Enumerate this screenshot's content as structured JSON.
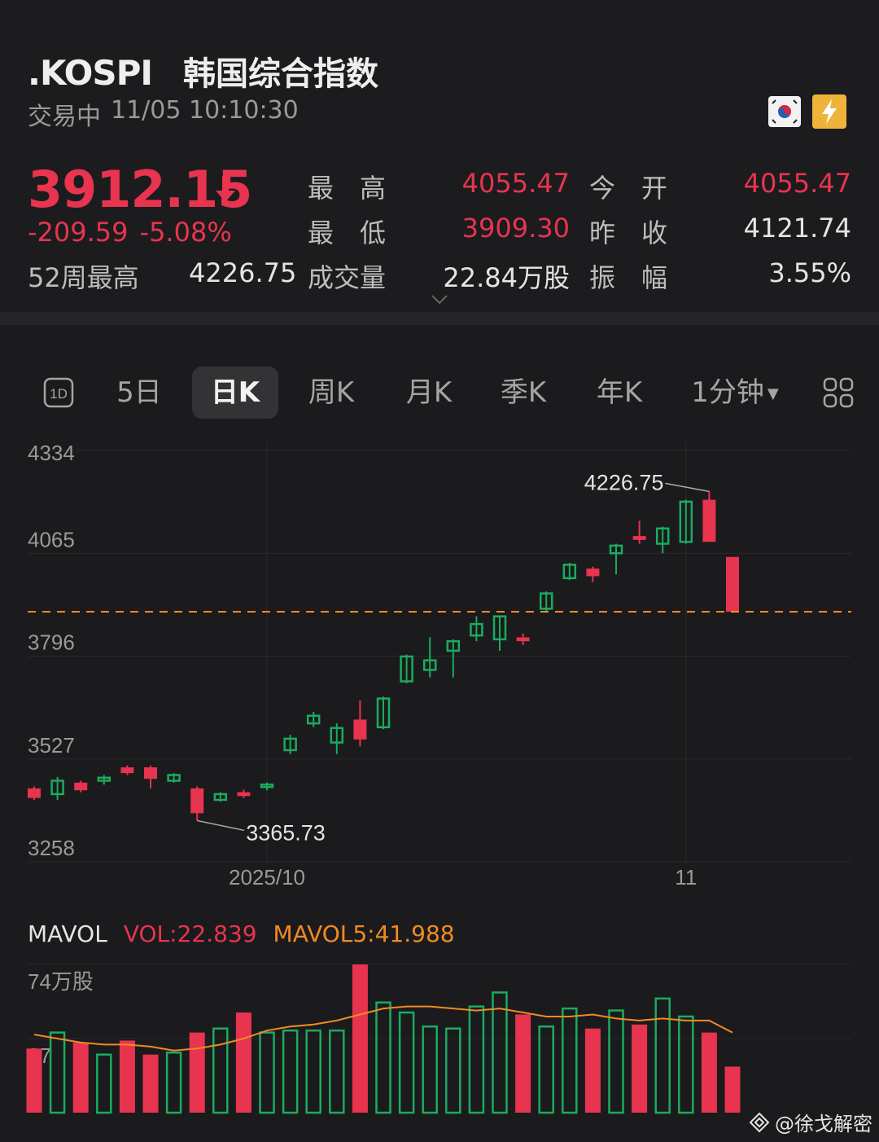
{
  "header": {
    "ticker": ".KOSPI",
    "name": "韩国综合指数",
    "status": "交易中",
    "datetime": "11/05 10:10:30",
    "price": "3912.15",
    "change": "-209.59",
    "change_pct": "-5.08%",
    "week52_label": "52周最高",
    "week52_value": "4226.75",
    "stats": {
      "high_label": "最高",
      "high": "4055.47",
      "low_label": "最低",
      "low": "3909.30",
      "volume_label": "成交量",
      "volume": "22.84万股",
      "open_label": "今开",
      "open": "4055.47",
      "prev_close_label": "昨收",
      "prev_close": "4121.74",
      "amplitude_label": "振幅",
      "amplitude": "3.55%"
    }
  },
  "tabs": [
    {
      "label": "1D",
      "icon": "1d-icon"
    },
    {
      "label": "5日"
    },
    {
      "label": "日K",
      "active": true
    },
    {
      "label": "周K"
    },
    {
      "label": "月K"
    },
    {
      "label": "季K"
    },
    {
      "label": "年K"
    },
    {
      "label": "1分钟"
    },
    {
      "label": "",
      "icon": "grid-icon"
    }
  ],
  "colors": {
    "up": "#1bab5f",
    "down": "#e8344f",
    "ma": "#f08a24",
    "bg": "#1b1b1d"
  },
  "chart_data": {
    "type": "candlestick",
    "y_ticks": [
      "4334",
      "4065",
      "3796",
      "3527",
      "3258"
    ],
    "x_tick_labels": [
      "2025/10",
      "11"
    ],
    "current_price_line": 3912.15,
    "annotations": [
      {
        "label": "4226.75"
      },
      {
        "label": "3365.73"
      }
    ],
    "candles": [
      {
        "o": 3450,
        "h": 3455,
        "l": 3420,
        "c": 3425
      },
      {
        "o": 3435,
        "h": 3480,
        "l": 3420,
        "c": 3470
      },
      {
        "o": 3465,
        "h": 3470,
        "l": 3440,
        "c": 3445
      },
      {
        "o": 3470,
        "h": 3485,
        "l": 3460,
        "c": 3478
      },
      {
        "o": 3505,
        "h": 3510,
        "l": 3485,
        "c": 3490
      },
      {
        "o": 3505,
        "h": 3510,
        "l": 3450,
        "c": 3475
      },
      {
        "o": 3470,
        "h": 3490,
        "l": 3465,
        "c": 3485
      },
      {
        "o": 3450,
        "h": 3455,
        "l": 3365.73,
        "c": 3385
      },
      {
        "o": 3420,
        "h": 3440,
        "l": 3415,
        "c": 3435
      },
      {
        "o": 3440,
        "h": 3447,
        "l": 3425,
        "c": 3430
      },
      {
        "o": 3455,
        "h": 3465,
        "l": 3445,
        "c": 3460
      },
      {
        "o": 3550,
        "h": 3590,
        "l": 3540,
        "c": 3580
      },
      {
        "o": 3620,
        "h": 3650,
        "l": 3610,
        "c": 3640
      },
      {
        "o": 3570,
        "h": 3620,
        "l": 3540,
        "c": 3608
      },
      {
        "o": 3630,
        "h": 3680,
        "l": 3560,
        "c": 3578
      },
      {
        "o": 3610,
        "h": 3690,
        "l": 3605,
        "c": 3685
      },
      {
        "o": 3730,
        "h": 3800,
        "l": 3725,
        "c": 3795
      },
      {
        "o": 3760,
        "h": 3845,
        "l": 3740,
        "c": 3785
      },
      {
        "o": 3810,
        "h": 3840,
        "l": 3740,
        "c": 3835
      },
      {
        "o": 3850,
        "h": 3900,
        "l": 3835,
        "c": 3880
      },
      {
        "o": 3840,
        "h": 3900,
        "l": 3810,
        "c": 3900
      },
      {
        "o": 3845,
        "h": 3855,
        "l": 3825,
        "c": 3835
      },
      {
        "o": 3920,
        "h": 3965,
        "l": 3910,
        "c": 3960
      },
      {
        "o": 4000,
        "h": 4040,
        "l": 3995,
        "c": 4035
      },
      {
        "o": 4025,
        "h": 4030,
        "l": 3990,
        "c": 4005
      },
      {
        "o": 4065,
        "h": 4090,
        "l": 4010,
        "c": 4085
      },
      {
        "o": 4110,
        "h": 4150,
        "l": 4090,
        "c": 4100
      },
      {
        "o": 4090,
        "h": 4135,
        "l": 4065,
        "c": 4130
      },
      {
        "o": 4095,
        "h": 4205,
        "l": 4090,
        "c": 4200
      },
      {
        "o": 4205,
        "h": 4226.75,
        "l": 4095,
        "c": 4095
      },
      {
        "o": 4055.47,
        "h": 4055.47,
        "l": 3909.3,
        "c": 3912.15
      }
    ],
    "volume": {
      "header_label": "MAVOL",
      "vol_label": "VOL:22.839",
      "mavol_label": "MAVOL5:41.988",
      "y_ticks": [
        "74万股",
        "37"
      ],
      "values": [
        32,
        40,
        35,
        29,
        36,
        29,
        30,
        40,
        42,
        50,
        40,
        41,
        41,
        41,
        74,
        55,
        50,
        43,
        42,
        53,
        60,
        49,
        43,
        52,
        42,
        51,
        44,
        57,
        48,
        40,
        23
      ],
      "ma5": [
        39,
        37,
        35,
        34,
        34,
        33,
        31,
        32,
        34,
        37,
        41,
        43,
        44,
        46,
        49,
        52,
        53,
        53,
        52,
        51,
        52,
        50,
        48,
        48,
        49,
        47,
        46,
        47,
        46,
        46,
        40
      ]
    }
  },
  "watermark": "@徐戈解密"
}
